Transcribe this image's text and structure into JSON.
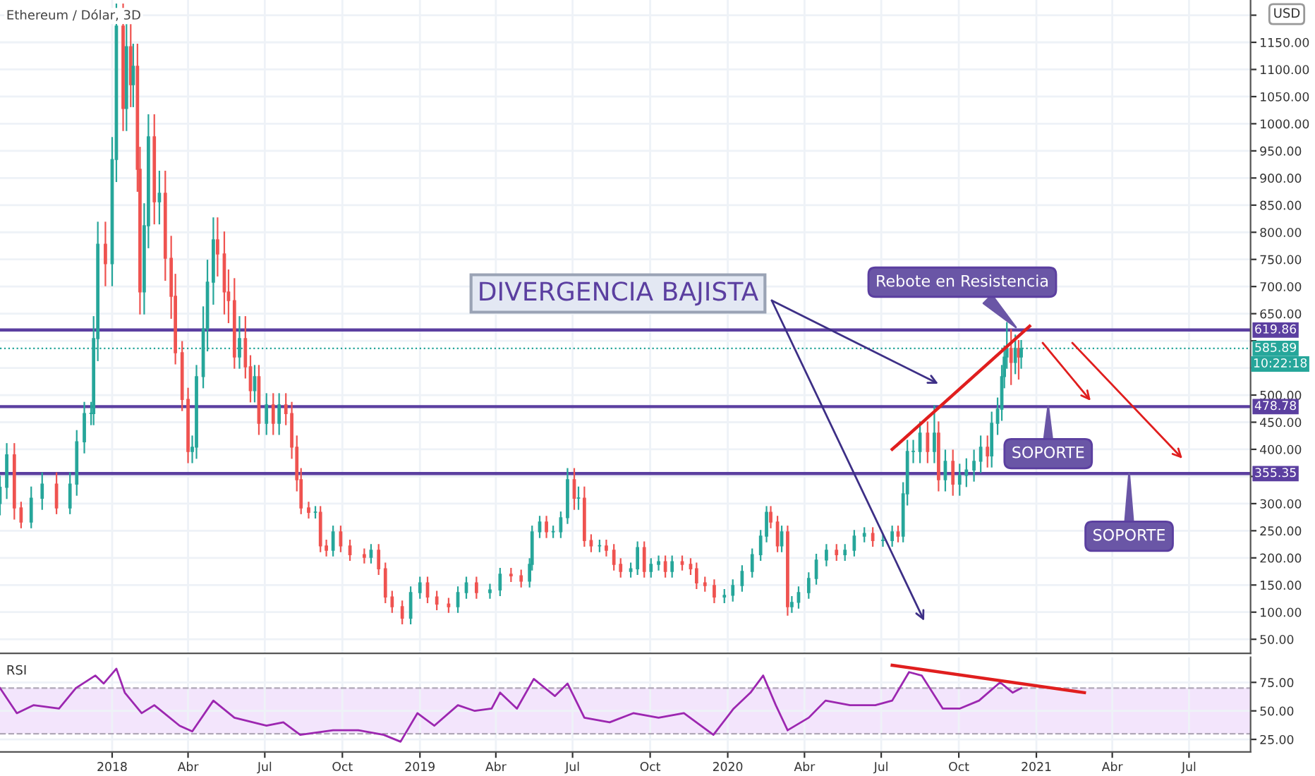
{
  "chart_data": [
    {
      "type": "candlestick",
      "title": "Ethereum / Dólar, 3D",
      "x": [
        "2017-08-21",
        "2017-08-29",
        "2017-09-07",
        "2017-09-15",
        "2017-09-27",
        "2017-10-10",
        "2017-10-27",
        "2017-11-12",
        "2017-11-20",
        "2017-11-29",
        "2017-12-07",
        "2017-12-10",
        "2017-12-15",
        "2017-12-24",
        "2018-01-01",
        "2018-01-06",
        "2018-01-14",
        "2018-01-18",
        "2018-01-23",
        "2018-01-26",
        "2018-01-31",
        "2018-02-03",
        "2018-02-08",
        "2018-02-13",
        "2018-02-20",
        "2018-02-26",
        "2018-03-05",
        "2018-03-12",
        "2018-03-17",
        "2018-03-25",
        "2018-04-01",
        "2018-04-06",
        "2018-04-11",
        "2018-04-19",
        "2018-04-24",
        "2018-05-01",
        "2018-05-06",
        "2018-05-14",
        "2018-05-19",
        "2018-05-26",
        "2018-06-01",
        "2018-06-08",
        "2018-06-14",
        "2018-06-19",
        "2018-06-24",
        "2018-07-03",
        "2018-07-11",
        "2018-07-18",
        "2018-07-26",
        "2018-08-02",
        "2018-08-08",
        "2018-08-13",
        "2018-08-22",
        "2018-08-30",
        "2018-09-05",
        "2018-09-12",
        "2018-09-20",
        "2018-09-29",
        "2018-10-10",
        "2018-10-27",
        "2018-11-04",
        "2018-11-13",
        "2018-11-21",
        "2018-11-29",
        "2018-12-11",
        "2018-12-21",
        "2019-01-01",
        "2019-01-10",
        "2019-01-21",
        "2019-02-04",
        "2019-02-15",
        "2019-02-25",
        "2019-03-09",
        "2019-03-25",
        "2019-04-06",
        "2019-04-19",
        "2019-05-01",
        "2019-05-11",
        "2019-05-14",
        "2019-05-23",
        "2019-05-31",
        "2019-06-08",
        "2019-06-17",
        "2019-06-25",
        "2019-07-03",
        "2019-07-08",
        "2019-07-15",
        "2019-07-23",
        "2019-08-02",
        "2019-08-10",
        "2019-08-19",
        "2019-08-27",
        "2019-09-08",
        "2019-09-16",
        "2019-09-24",
        "2019-10-02",
        "2019-10-11",
        "2019-10-19",
        "2019-10-27",
        "2019-11-08",
        "2019-11-18",
        "2019-11-25",
        "2019-12-05",
        "2019-12-16",
        "2019-12-28",
        "2020-01-07",
        "2020-01-18",
        "2020-01-30",
        "2020-02-09",
        "2020-02-16",
        "2020-02-21",
        "2020-02-29",
        "2020-03-05",
        "2020-03-12",
        "2020-03-17",
        "2020-03-25",
        "2020-04-06",
        "2020-04-15",
        "2020-04-27",
        "2020-05-09",
        "2020-05-19",
        "2020-05-30",
        "2020-06-11",
        "2020-06-21",
        "2020-07-03",
        "2020-07-14",
        "2020-07-21",
        "2020-07-27",
        "2020-08-01",
        "2020-08-08",
        "2020-08-16",
        "2020-08-25",
        "2020-09-02",
        "2020-09-07",
        "2020-09-15",
        "2020-09-24",
        "2020-10-02",
        "2020-10-10",
        "2020-10-19",
        "2020-10-27",
        "2020-11-04",
        "2020-11-09",
        "2020-11-16",
        "2020-11-21",
        "2020-11-24",
        "2020-11-27",
        "2020-12-02",
        "2020-12-07",
        "2020-12-11",
        "2020-12-14"
      ],
      "ohlc": [
        [
          300,
          350,
          280,
          330
        ],
        [
          330,
          410,
          310,
          390
        ],
        [
          390,
          410,
          272,
          292
        ],
        [
          292,
          302,
          256,
          266
        ],
        [
          266,
          330,
          256,
          310
        ],
        [
          310,
          356,
          290,
          336
        ],
        [
          336,
          356,
          282,
          292
        ],
        [
          292,
          356,
          282,
          336
        ],
        [
          336,
          434,
          316,
          414
        ],
        [
          414,
          486,
          394,
          466
        ],
        [
          466,
          486,
          446,
          466
        ],
        [
          466,
          644,
          446,
          604
        ],
        [
          604,
          818,
          564,
          778
        ],
        [
          778,
          818,
          702,
          742
        ],
        [
          742,
          974,
          702,
          934
        ],
        [
          934,
          1220,
          894,
          1180
        ],
        [
          1180,
          1220,
          988,
          1028
        ],
        [
          1028,
          1182,
          988,
          1142
        ],
        [
          1142,
          1182,
          1032,
          1072
        ],
        [
          1072,
          1146,
          1032,
          1106
        ],
        [
          1106,
          1146,
          876,
          916
        ],
        [
          916,
          956,
          650,
          690
        ],
        [
          690,
          852,
          650,
          812
        ],
        [
          812,
          1016,
          772,
          976
        ],
        [
          976,
          1016,
          816,
          856
        ],
        [
          856,
          912,
          816,
          872
        ],
        [
          872,
          912,
          712,
          752
        ],
        [
          752,
          792,
          642,
          682
        ],
        [
          682,
          722,
          558,
          578
        ],
        [
          578,
          598,
          472,
          492
        ],
        [
          492,
          512,
          376,
          396
        ],
        [
          396,
          424,
          376,
          404
        ],
        [
          404,
          554,
          384,
          534
        ],
        [
          534,
          662,
          514,
          622
        ],
        [
          622,
          748,
          582,
          708
        ],
        [
          708,
          826,
          668,
          786
        ],
        [
          786,
          826,
          720,
          760
        ],
        [
          760,
          800,
          650,
          690
        ],
        [
          690,
          730,
          634,
          674
        ],
        [
          674,
          714,
          550,
          570
        ],
        [
          570,
          644,
          550,
          604
        ],
        [
          604,
          644,
          532,
          552
        ],
        [
          552,
          572,
          488,
          508
        ],
        [
          508,
          554,
          488,
          534
        ],
        [
          534,
          554,
          428,
          448
        ],
        [
          448,
          502,
          428,
          482
        ],
        [
          482,
          502,
          428,
          448
        ],
        [
          448,
          502,
          428,
          482
        ],
        [
          482,
          502,
          446,
          466
        ],
        [
          466,
          486,
          384,
          404
        ],
        [
          404,
          424,
          324,
          344
        ],
        [
          344,
          364,
          282,
          292
        ],
        [
          292,
          302,
          274,
          284
        ],
        [
          284,
          294,
          274,
          284
        ],
        [
          284,
          294,
          212,
          222
        ],
        [
          222,
          232,
          204,
          214
        ],
        [
          214,
          258,
          204,
          248
        ],
        [
          248,
          258,
          212,
          222
        ],
        [
          222,
          232,
          196,
          206
        ],
        [
          206,
          216,
          191,
          201
        ],
        [
          201,
          224,
          191,
          214
        ],
        [
          214,
          224,
          170,
          180
        ],
        [
          180,
          190,
          118,
          128
        ],
        [
          128,
          138,
          100,
          110
        ],
        [
          110,
          120,
          79,
          89
        ],
        [
          89,
          146,
          79,
          136
        ],
        [
          136,
          164,
          126,
          154
        ],
        [
          154,
          164,
          118,
          128
        ],
        [
          128,
          138,
          105,
          115
        ],
        [
          115,
          125,
          100,
          110
        ],
        [
          110,
          146,
          100,
          136
        ],
        [
          136,
          164,
          126,
          154
        ],
        [
          154,
          164,
          126,
          136
        ],
        [
          136,
          151,
          126,
          141
        ],
        [
          141,
          180,
          131,
          170
        ],
        [
          170,
          180,
          157,
          167
        ],
        [
          167,
          177,
          147,
          157
        ],
        [
          157,
          198,
          147,
          188
        ],
        [
          188,
          258,
          178,
          248
        ],
        [
          248,
          276,
          238,
          266
        ],
        [
          266,
          276,
          238,
          248
        ],
        [
          248,
          258,
          238,
          248
        ],
        [
          248,
          284,
          238,
          274
        ],
        [
          274,
          364,
          264,
          344
        ],
        [
          344,
          364,
          290,
          310
        ],
        [
          310,
          330,
          290,
          310
        ],
        [
          310,
          330,
          222,
          232
        ],
        [
          232,
          242,
          212,
          222
        ],
        [
          222,
          232,
          212,
          222
        ],
        [
          222,
          232,
          204,
          214
        ],
        [
          214,
          224,
          178,
          188
        ],
        [
          188,
          198,
          165,
          175
        ],
        [
          175,
          190,
          165,
          180
        ],
        [
          180,
          229,
          170,
          219
        ],
        [
          219,
          229,
          165,
          175
        ],
        [
          175,
          198,
          165,
          188
        ],
        [
          188,
          203,
          178,
          193
        ],
        [
          193,
          203,
          165,
          175
        ],
        [
          175,
          203,
          165,
          193
        ],
        [
          193,
          203,
          178,
          188
        ],
        [
          188,
          198,
          170,
          180
        ],
        [
          180,
          190,
          144,
          154
        ],
        [
          154,
          164,
          139,
          149
        ],
        [
          149,
          159,
          118,
          128
        ],
        [
          128,
          141,
          118,
          131
        ],
        [
          131,
          159,
          121,
          149
        ],
        [
          149,
          185,
          139,
          175
        ],
        [
          175,
          216,
          165,
          206
        ],
        [
          206,
          250,
          196,
          240
        ],
        [
          240,
          294,
          230,
          284
        ],
        [
          284,
          294,
          256,
          266
        ],
        [
          266,
          276,
          212,
          222
        ],
        [
          222,
          258,
          212,
          248
        ],
        [
          248,
          258,
          95,
          110
        ],
        [
          110,
          128,
          100,
          118
        ],
        [
          118,
          146,
          108,
          136
        ],
        [
          136,
          172,
          126,
          162
        ],
        [
          162,
          206,
          152,
          196
        ],
        [
          196,
          224,
          186,
          214
        ],
        [
          214,
          224,
          196,
          206
        ],
        [
          206,
          224,
          196,
          214
        ],
        [
          214,
          250,
          204,
          240
        ],
        [
          240,
          255,
          230,
          245
        ],
        [
          245,
          255,
          222,
          232
        ],
        [
          232,
          242,
          222,
          232
        ],
        [
          232,
          258,
          222,
          248
        ],
        [
          248,
          258,
          230,
          240
        ],
        [
          240,
          338,
          230,
          318
        ],
        [
          318,
          416,
          298,
          396
        ],
        [
          396,
          416,
          376,
          396
        ],
        [
          396,
          450,
          376,
          430
        ],
        [
          430,
          450,
          376,
          396
        ],
        [
          396,
          480,
          376,
          430
        ],
        [
          430,
          450,
          324,
          344
        ],
        [
          344,
          398,
          324,
          378
        ],
        [
          378,
          398,
          316,
          336
        ],
        [
          336,
          372,
          316,
          352
        ],
        [
          352,
          382,
          332,
          362
        ],
        [
          362,
          398,
          342,
          378
        ],
        [
          378,
          424,
          358,
          404
        ],
        [
          404,
          424,
          368,
          388
        ],
        [
          388,
          468,
          368,
          448
        ],
        [
          448,
          494,
          428,
          474
        ],
        [
          474,
          554,
          454,
          534
        ],
        [
          534,
          590,
          514,
          570
        ],
        [
          570,
          633,
          550,
          586
        ],
        [
          586,
          620,
          520,
          560
        ],
        [
          560,
          610,
          540,
          586
        ],
        [
          586,
          600,
          530,
          570
        ],
        [
          570,
          600,
          550,
          586
        ]
      ],
      "colors": [
        "#26a69a",
        "#26a69a",
        "#ef5350",
        "#ef5350",
        "#26a69a",
        "#26a69a",
        "#ef5350",
        "#26a69a",
        "#26a69a",
        "#26a69a",
        "#26a69a",
        "#26a69a",
        "#26a69a",
        "#ef5350",
        "#26a69a",
        "#26a69a",
        "#ef5350",
        "#26a69a",
        "#ef5350",
        "#26a69a",
        "#ef5350",
        "#ef5350",
        "#26a69a",
        "#26a69a",
        "#ef5350",
        "#26a69a",
        "#ef5350",
        "#ef5350",
        "#ef5350",
        "#ef5350",
        "#ef5350",
        "#26a69a",
        "#26a69a",
        "#26a69a",
        "#26a69a",
        "#26a69a",
        "#ef5350",
        "#ef5350",
        "#ef5350",
        "#ef5350",
        "#26a69a",
        "#ef5350",
        "#ef5350",
        "#26a69a",
        "#ef5350",
        "#26a69a",
        "#ef5350",
        "#26a69a",
        "#ef5350",
        "#ef5350",
        "#ef5350",
        "#ef5350",
        "#ef5350",
        "#26a69a",
        "#ef5350",
        "#ef5350",
        "#26a69a",
        "#ef5350",
        "#ef5350",
        "#ef5350",
        "#26a69a",
        "#ef5350",
        "#ef5350",
        "#ef5350",
        "#ef5350",
        "#26a69a",
        "#26a69a",
        "#ef5350",
        "#ef5350",
        "#ef5350",
        "#26a69a",
        "#26a69a",
        "#ef5350",
        "#26a69a",
        "#26a69a",
        "#ef5350",
        "#ef5350",
        "#26a69a",
        "#26a69a",
        "#26a69a",
        "#ef5350",
        "#26a69a",
        "#26a69a",
        "#26a69a",
        "#ef5350",
        "#26a69a",
        "#ef5350",
        "#ef5350",
        "#26a69a",
        "#ef5350",
        "#ef5350",
        "#ef5350",
        "#26a69a",
        "#26a69a",
        "#ef5350",
        "#26a69a",
        "#26a69a",
        "#ef5350",
        "#26a69a",
        "#ef5350",
        "#ef5350",
        "#ef5350",
        "#ef5350",
        "#ef5350",
        "#26a69a",
        "#26a69a",
        "#26a69a",
        "#26a69a",
        "#26a69a",
        "#26a69a",
        "#ef5350",
        "#ef5350",
        "#26a69a",
        "#ef5350",
        "#26a69a",
        "#26a69a",
        "#26a69a",
        "#26a69a",
        "#26a69a",
        "#ef5350",
        "#26a69a",
        "#26a69a",
        "#26a69a",
        "#ef5350",
        "#26a69a",
        "#26a69a",
        "#ef5350",
        "#26a69a",
        "#26a69a",
        "#26a69a",
        "#26a69a",
        "#ef5350",
        "#26a69a",
        "#ef5350",
        "#26a69a",
        "#ef5350",
        "#26a69a",
        "#26a69a",
        "#26a69a",
        "#26a69a",
        "#ef5350",
        "#26a69a",
        "#26a69a",
        "#26a69a",
        "#26a69a",
        "#26a69a",
        "#ef5350",
        "#26a69a",
        "#ef5350",
        "#26a69a"
      ],
      "series": [
        {
          "type": "line",
          "color": "#e01e1e",
          "x": [
            "2020-07-14",
            "2020-12-24"
          ],
          "values": [
            400,
            627
          ]
        }
      ],
      "xlim": [
        "2017-08-21",
        "2021-09-12"
      ],
      "xticks": [
        {
          "value": "2018-01-01",
          "label": null
        },
        {
          "value": "2018-04-01",
          "label": null
        },
        {
          "value": "2018-07-01",
          "label": null
        },
        {
          "value": "2018-10-01",
          "label": null
        },
        {
          "value": "2019-01-01",
          "label": null
        },
        {
          "value": "2019-04-01",
          "label": null
        },
        {
          "value": "2019-07-01",
          "label": null
        },
        {
          "value": "2019-10-01",
          "label": null
        },
        {
          "value": "2020-01-01",
          "label": null
        },
        {
          "value": "2020-04-01",
          "label": null
        },
        {
          "value": "2020-07-01",
          "label": null
        },
        {
          "value": "2020-10-01",
          "label": null
        },
        {
          "value": "2021-01-01",
          "label": null
        },
        {
          "value": "2021-04-01",
          "label": null
        },
        {
          "value": "2021-07-01",
          "label": null
        }
      ],
      "ylim": [
        24,
        1228
      ],
      "yticks": [
        {
          "value": 50,
          "label": "50.00"
        },
        {
          "value": 100,
          "label": "100.00"
        },
        {
          "value": 150,
          "label": "150.00"
        },
        {
          "value": 200,
          "label": "200.00"
        },
        {
          "value": 250,
          "label": "250.00"
        },
        {
          "value": 300,
          "label": "300.00"
        },
        {
          "value": 350,
          "label": null
        },
        {
          "value": 400,
          "label": "400.00"
        },
        {
          "value": 450,
          "label": "450.00"
        },
        {
          "value": 500,
          "label": "500.00"
        },
        {
          "value": 550,
          "label": null
        },
        {
          "value": 600,
          "label": null
        },
        {
          "value": 650,
          "label": "650.00"
        },
        {
          "value": 700,
          "label": "700.00"
        },
        {
          "value": 750,
          "label": "750.00"
        },
        {
          "value": 800,
          "label": "800.00"
        },
        {
          "value": 850,
          "label": "850.00"
        },
        {
          "value": 900,
          "label": "900.00"
        },
        {
          "value": 950,
          "label": "950.00"
        },
        {
          "value": 1000,
          "label": "1000.00"
        },
        {
          "value": 1050,
          "label": "1050.00"
        },
        {
          "value": 1100,
          "label": "1100.00"
        },
        {
          "value": 1150,
          "label": "1150.00"
        },
        {
          "value": 1200,
          "label": null
        }
      ],
      "tick_labels": "y",
      "grid": true,
      "ref_lines": [
        {
          "axis": "y",
          "value": 619.86,
          "label": "619.86",
          "color": "#5b3fa0",
          "line_style": "solid"
        },
        {
          "axis": "y",
          "value": 478.78,
          "label": "478.78",
          "color": "#5b3fa0",
          "line_style": "solid"
        },
        {
          "axis": "y",
          "value": 355.35,
          "label": "355.35",
          "color": "#5b3fa0",
          "line_style": "solid"
        },
        {
          "axis": "y",
          "value": 585.89,
          "label": "585.89",
          "color": "#26a69a",
          "line_style": "dotted"
        }
      ],
      "annotations": [
        "DIVERGENCIA BAJISTA",
        "Rebote en Resistencia",
        {
          "text": "SOPORTE",
          "x": "2021-01-15",
          "y": 478.78
        },
        {
          "text": "SOPORTE",
          "x": "2021-04-21",
          "y": 355.35
        },
        "10:22:18",
        "USD"
      ]
    },
    {
      "type": "line",
      "series": [
        {
          "color": "#9c27b0",
          "x": [
            "2017-08-21",
            "2017-09-10",
            "2017-09-30",
            "2017-10-30",
            "2017-11-19",
            "2017-12-12",
            "2017-12-22",
            "2018-01-06",
            "2018-01-16",
            "2018-02-05",
            "2018-02-20",
            "2018-03-22",
            "2018-04-06",
            "2018-05-01",
            "2018-05-26",
            "2018-07-03",
            "2018-07-23",
            "2018-08-12",
            "2018-09-20",
            "2018-10-20",
            "2018-11-19",
            "2018-12-09",
            "2018-12-29",
            "2019-01-18",
            "2019-02-15",
            "2019-03-07",
            "2019-03-27",
            "2019-04-06",
            "2019-04-26",
            "2019-05-16",
            "2019-06-10",
            "2019-06-25",
            "2019-07-15",
            "2019-08-14",
            "2019-09-11",
            "2019-10-11",
            "2019-11-10",
            "2019-12-15",
            "2020-01-08",
            "2020-01-28",
            "2020-02-12",
            "2020-02-27",
            "2020-03-12",
            "2020-04-06",
            "2020-04-26",
            "2020-05-25",
            "2020-06-24",
            "2020-07-14",
            "2020-08-03",
            "2020-08-18",
            "2020-09-12",
            "2020-10-02",
            "2020-10-25",
            "2020-11-19",
            "2020-12-04",
            "2020-12-14"
          ],
          "values": [
            70,
            48,
            55,
            52,
            70,
            81,
            74,
            87,
            66,
            48,
            55,
            37,
            32,
            59,
            44,
            37,
            40,
            29,
            33,
            33,
            29,
            23,
            48,
            37,
            55,
            50,
            52,
            66,
            52,
            78,
            63,
            74,
            44,
            40,
            48,
            44,
            48,
            29,
            52,
            66,
            81,
            55,
            33,
            44,
            59,
            55,
            55,
            59,
            84,
            81,
            52,
            52,
            59,
            75,
            66,
            70
          ]
        },
        {
          "type": "line",
          "color": "#e01e1e",
          "x": [
            "2020-07-14",
            "2021-02-27"
          ],
          "values": [
            90,
            66
          ]
        }
      ],
      "xlim": [
        "2017-08-21",
        "2021-09-12"
      ],
      "xticks": [
        {
          "value": "2018-01-01",
          "label": "2018"
        },
        {
          "value": "2018-04-01",
          "label": "Abr"
        },
        {
          "value": "2018-07-01",
          "label": "Jul"
        },
        {
          "value": "2018-10-01",
          "label": "Oct"
        },
        {
          "value": "2019-01-01",
          "label": "2019"
        },
        {
          "value": "2019-04-01",
          "label": "Abr"
        },
        {
          "value": "2019-07-01",
          "label": "Jul"
        },
        {
          "value": "2019-10-01",
          "label": "Oct"
        },
        {
          "value": "2020-01-01",
          "label": "2020"
        },
        {
          "value": "2020-04-01",
          "label": "Abr"
        },
        {
          "value": "2020-07-01",
          "label": "Jul"
        },
        {
          "value": "2020-10-01",
          "label": "Oct"
        },
        {
          "value": "2021-01-01",
          "label": "2021"
        },
        {
          "value": "2021-04-01",
          "label": "Abr"
        },
        {
          "value": "2021-07-01",
          "label": "Jul"
        }
      ],
      "ylim": [
        14,
        97
      ],
      "yticks": [
        {
          "value": 25,
          "label": "25.00"
        },
        {
          "value": 50,
          "label": "50.00"
        },
        {
          "value": 75,
          "label": "75.00"
        }
      ],
      "grid": true,
      "bands": [
        {
          "axis": "y",
          "from": 30,
          "to": 70,
          "color": "#f3e5fc"
        }
      ],
      "ref_lines": [
        {
          "axis": "y",
          "value": 70,
          "color": "#b0a8b8",
          "line_style": "dashed"
        },
        {
          "axis": "y",
          "value": 30,
          "color": "#b0a8b8",
          "line_style": "dashed"
        }
      ],
      "annotations": [
        "RSI"
      ]
    }
  ]
}
